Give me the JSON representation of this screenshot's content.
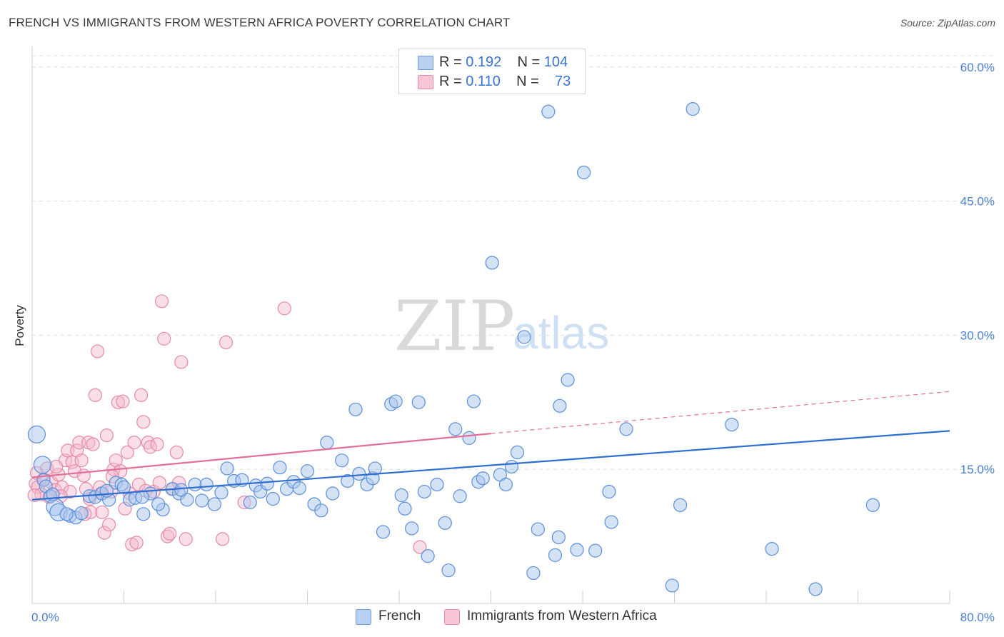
{
  "header": {
    "title": "FRENCH VS IMMIGRANTS FROM WESTERN AFRICA POVERTY CORRELATION CHART",
    "source": "Source: ZipAtlas.com"
  },
  "watermark": {
    "zip": "ZIP",
    "atlas": "atlas"
  },
  "legend": {
    "rows": [
      {
        "r_label": "R =",
        "r_value": "0.192",
        "n_label": "N =",
        "n_value": "104"
      },
      {
        "r_label": "R =",
        "r_value": "0.110",
        "n_label": "N =",
        "n_value": "73"
      }
    ]
  },
  "colors": {
    "blue_fill": "#a9c6ee",
    "blue_stroke": "#5b8fd9",
    "blue_line": "#2f6fcf",
    "pink_fill": "#f4b8cc",
    "pink_stroke": "#e58aa8",
    "pink_line": "#e0709a",
    "grid": "#dedede",
    "tick_text": "#4a7fd4"
  },
  "chart_data": {
    "type": "scatter",
    "title": "FRENCH VS IMMIGRANTS FROM WESTERN AFRICA POVERTY CORRELATION CHART",
    "xlabel": "",
    "ylabel": "Poverty",
    "xlim": [
      0,
      80
    ],
    "ylim": [
      0,
      61.5
    ],
    "x_tick_labels": [
      "0.0%",
      "80.0%"
    ],
    "y_ticks": [
      15,
      30,
      45,
      60
    ],
    "y_tick_labels": [
      "15.0%",
      "30.0%",
      "45.0%",
      "60.0%"
    ],
    "grid": true,
    "legend_position": "bottom-center",
    "series": [
      {
        "name": "French",
        "trend": {
          "x": [
            0,
            80
          ],
          "y": [
            11.6,
            19.3
          ],
          "style": "solid"
        },
        "points": [
          [
            0.4,
            18.9
          ],
          [
            0.9,
            15.5
          ],
          [
            1.0,
            13.8
          ],
          [
            1.2,
            13.1
          ],
          [
            1.6,
            12.0
          ],
          [
            2.0,
            10.8
          ],
          [
            2.3,
            10.2
          ],
          [
            3.3,
            9.8
          ],
          [
            3.8,
            9.6
          ],
          [
            4.3,
            10.1
          ],
          [
            5.0,
            12.0
          ],
          [
            5.5,
            11.9
          ],
          [
            6.1,
            12.3
          ],
          [
            6.7,
            11.6
          ],
          [
            7.3,
            13.5
          ],
          [
            7.8,
            13.3
          ],
          [
            8.5,
            11.6
          ],
          [
            9.0,
            11.8
          ],
          [
            9.7,
            10.0
          ],
          [
            10.3,
            12.3
          ],
          [
            11.4,
            10.5
          ],
          [
            12.2,
            12.8
          ],
          [
            12.8,
            12.3
          ],
          [
            13.5,
            11.6
          ],
          [
            14.2,
            13.3
          ],
          [
            14.8,
            11.5
          ],
          [
            15.2,
            13.3
          ],
          [
            15.9,
            11.1
          ],
          [
            16.5,
            12.4
          ],
          [
            17.0,
            15.1
          ],
          [
            17.6,
            13.7
          ],
          [
            18.3,
            13.8
          ],
          [
            19.0,
            11.3
          ],
          [
            19.5,
            13.2
          ],
          [
            19.9,
            12.5
          ],
          [
            20.5,
            13.4
          ],
          [
            21.0,
            11.7
          ],
          [
            21.6,
            15.2
          ],
          [
            22.2,
            12.8
          ],
          [
            22.8,
            13.6
          ],
          [
            23.3,
            12.9
          ],
          [
            24.0,
            14.8
          ],
          [
            24.6,
            11.1
          ],
          [
            25.2,
            10.4
          ],
          [
            25.7,
            18.0
          ],
          [
            26.2,
            12.3
          ],
          [
            27.0,
            16.0
          ],
          [
            27.5,
            13.7
          ],
          [
            28.2,
            21.7
          ],
          [
            28.5,
            14.5
          ],
          [
            29.2,
            13.3
          ],
          [
            29.7,
            14.0
          ],
          [
            29.9,
            15.1
          ],
          [
            30.6,
            8.0
          ],
          [
            31.3,
            22.3
          ],
          [
            31.7,
            22.6
          ],
          [
            32.2,
            12.1
          ],
          [
            32.5,
            10.6
          ],
          [
            33.1,
            8.4
          ],
          [
            33.7,
            22.5
          ],
          [
            34.2,
            12.5
          ],
          [
            34.5,
            5.3
          ],
          [
            35.3,
            13.3
          ],
          [
            36.0,
            9.0
          ],
          [
            36.3,
            3.7
          ],
          [
            36.9,
            19.5
          ],
          [
            37.3,
            12.0
          ],
          [
            38.1,
            18.5
          ],
          [
            38.5,
            22.6
          ],
          [
            38.9,
            13.6
          ],
          [
            39.3,
            14.0
          ],
          [
            40.1,
            38.1
          ],
          [
            40.8,
            14.4
          ],
          [
            41.3,
            13.3
          ],
          [
            41.8,
            15.3
          ],
          [
            42.3,
            16.9
          ],
          [
            42.9,
            29.8
          ],
          [
            43.7,
            3.4
          ],
          [
            44.1,
            8.3
          ],
          [
            45.0,
            55.0
          ],
          [
            45.6,
            5.4
          ],
          [
            45.9,
            7.4
          ],
          [
            46.7,
            25.0
          ],
          [
            47.5,
            6.0
          ],
          [
            48.1,
            48.2
          ],
          [
            49.1,
            5.9
          ],
          [
            50.3,
            12.5
          ],
          [
            50.5,
            9.1
          ],
          [
            51.8,
            19.5
          ],
          [
            55.8,
            2.0
          ],
          [
            56.5,
            11.0
          ],
          [
            57.6,
            55.3
          ],
          [
            61.0,
            20.0
          ],
          [
            64.5,
            6.1
          ],
          [
            68.3,
            1.6
          ],
          [
            73.3,
            11.0
          ],
          [
            46.0,
            22.1
          ],
          [
            3.0,
            10.0
          ],
          [
            6.5,
            12.6
          ],
          [
            9.6,
            11.9
          ],
          [
            1.8,
            12.2
          ],
          [
            8.0,
            13.0
          ],
          [
            11.0,
            11.1
          ],
          [
            13.0,
            12.7
          ]
        ]
      },
      {
        "name": "Immigrants from Western Africa",
        "trend": {
          "x": [
            0,
            40,
            80
          ],
          "y": [
            14.1,
            19.0,
            23.7
          ],
          "style": "solid-then-dashed"
        },
        "points": [
          [
            0.3,
            13.4
          ],
          [
            0.5,
            13.0
          ],
          [
            0.8,
            12.2
          ],
          [
            1.0,
            13.9
          ],
          [
            1.3,
            15.1
          ],
          [
            1.5,
            11.9
          ],
          [
            1.7,
            13.5
          ],
          [
            2.0,
            12.7
          ],
          [
            2.3,
            14.4
          ],
          [
            2.6,
            13.0
          ],
          [
            2.9,
            16.0
          ],
          [
            3.1,
            17.1
          ],
          [
            3.3,
            12.5
          ],
          [
            3.5,
            15.8
          ],
          [
            3.7,
            14.8
          ],
          [
            3.9,
            17.1
          ],
          [
            4.1,
            18.0
          ],
          [
            4.3,
            16.0
          ],
          [
            4.5,
            14.3
          ],
          [
            4.7,
            12.8
          ],
          [
            4.9,
            18.0
          ],
          [
            5.1,
            10.2
          ],
          [
            5.3,
            17.8
          ],
          [
            5.5,
            23.3
          ],
          [
            5.7,
            28.2
          ],
          [
            5.9,
            13.0
          ],
          [
            6.1,
            10.2
          ],
          [
            6.3,
            7.9
          ],
          [
            6.5,
            18.8
          ],
          [
            6.7,
            8.8
          ],
          [
            6.9,
            12.5
          ],
          [
            7.1,
            15.0
          ],
          [
            7.3,
            16.0
          ],
          [
            7.5,
            22.5
          ],
          [
            7.7,
            14.8
          ],
          [
            7.9,
            22.6
          ],
          [
            8.1,
            10.6
          ],
          [
            8.3,
            16.9
          ],
          [
            8.5,
            12.3
          ],
          [
            8.7,
            6.6
          ],
          [
            8.9,
            18.0
          ],
          [
            9.1,
            6.8
          ],
          [
            9.3,
            13.3
          ],
          [
            9.5,
            23.3
          ],
          [
            9.7,
            20.3
          ],
          [
            9.9,
            12.6
          ],
          [
            10.1,
            18.0
          ],
          [
            10.3,
            17.5
          ],
          [
            10.6,
            12.5
          ],
          [
            10.9,
            17.8
          ],
          [
            11.1,
            13.5
          ],
          [
            11.3,
            33.8
          ],
          [
            11.5,
            29.6
          ],
          [
            11.8,
            7.5
          ],
          [
            12.0,
            7.8
          ],
          [
            12.3,
            12.8
          ],
          [
            12.6,
            16.9
          ],
          [
            12.8,
            13.5
          ],
          [
            13.0,
            27.0
          ],
          [
            13.4,
            7.2
          ],
          [
            16.6,
            7.2
          ],
          [
            16.9,
            29.2
          ],
          [
            18.5,
            11.3
          ],
          [
            22.0,
            33.0
          ],
          [
            33.8,
            6.3
          ],
          [
            0.2,
            12.1
          ],
          [
            0.4,
            14.6
          ],
          [
            2.1,
            15.3
          ],
          [
            5.0,
            11.7
          ],
          [
            6.0,
            12.3
          ],
          [
            2.5,
            12.0
          ],
          [
            4.6,
            10.0
          ],
          [
            7.0,
            14.2
          ]
        ]
      }
    ]
  },
  "bottom_legend": {
    "items": [
      "French",
      "Immigrants from Western Africa"
    ]
  }
}
